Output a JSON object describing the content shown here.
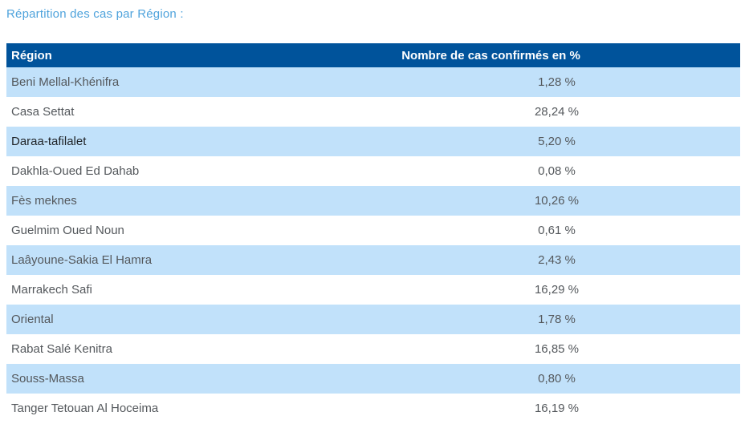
{
  "title": "Répartition des cas par Région :",
  "table": {
    "columns": [
      "Région",
      "Nombre de cas confirmés en %"
    ],
    "rows": [
      {
        "region": "Beni Mellal-Khénifra",
        "value": "1,28 %"
      },
      {
        "region": "Casa Settat",
        "value": "28,24 %"
      },
      {
        "region": "Daraa-tafilalet",
        "value": "5,20 %",
        "emphasis": true
      },
      {
        "region": "Dakhla-Oued Ed Dahab",
        "value": "0,08 %"
      },
      {
        "region": "Fès meknes",
        "value": "10,26 %"
      },
      {
        "region": "Guelmim Oued Noun",
        "value": "0,61 %"
      },
      {
        "region": "Laâyoune-Sakia El Hamra",
        "value": "2,43 %"
      },
      {
        "region": "Marrakech Safi",
        "value": "16,29 %"
      },
      {
        "region": "Oriental",
        "value": "1,78 %"
      },
      {
        "region": "Rabat Salé Kenitra",
        "value": "16,85 %"
      },
      {
        "region": "Souss-Massa",
        "value": "0,80 %"
      },
      {
        "region": "Tanger Tetouan Al Hoceima",
        "value": "16,19 %"
      }
    ]
  },
  "colors": {
    "header_bg": "#00539B",
    "header_text": "#FFFFFF",
    "band_bg": "#C1E1FA",
    "row_bg": "#FFFFFF",
    "title_text": "#4FA3DC",
    "row_text": "#54585C",
    "emphasis_text": "#1F2327"
  }
}
